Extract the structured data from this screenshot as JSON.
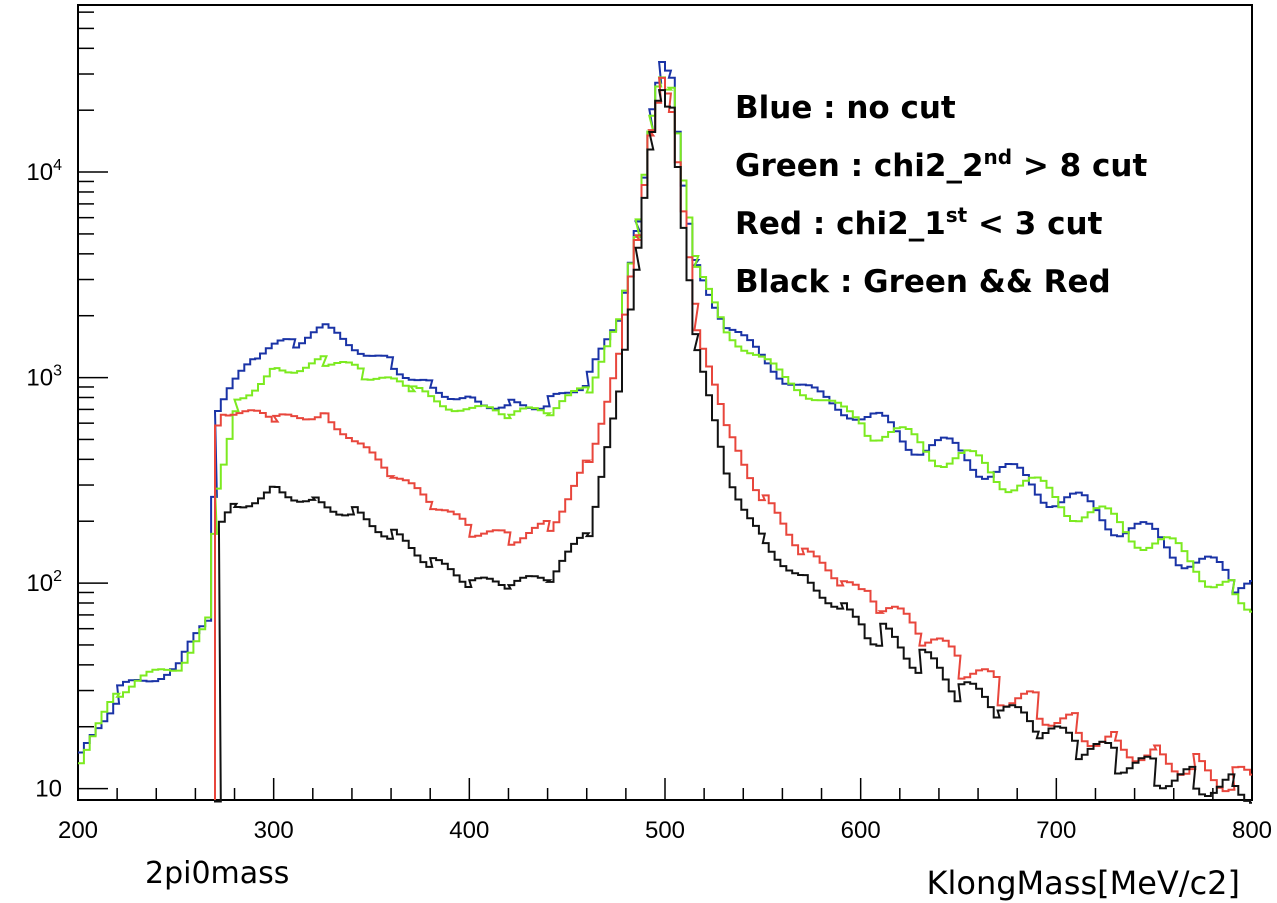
{
  "chart_data": {
    "type": "line",
    "style": "step-histogram",
    "y_scale": "log",
    "xlim": [
      200,
      800
    ],
    "ylim": [
      8.8,
      65000
    ],
    "x_ticks": [
      200,
      300,
      400,
      500,
      600,
      700,
      800
    ],
    "y_ticks": [
      {
        "value": 10,
        "base": "10",
        "exp": ""
      },
      {
        "value": 100,
        "base": "10",
        "exp": "2"
      },
      {
        "value": 1000,
        "base": "10",
        "exp": "3"
      },
      {
        "value": 10000,
        "base": "10",
        "exp": "4"
      }
    ],
    "xlabel": "KlongMass[MeV/c2]",
    "annotation": "2pi0mass",
    "grid": false,
    "legend_placement": "top-right",
    "legend": [
      {
        "color_name": "Blue",
        "pre": "Blue : no cut",
        "sup": "",
        "post": ""
      },
      {
        "color_name": "Green",
        "pre": "Green : chi2_2",
        "sup": "nd",
        "post": " > 8 cut"
      },
      {
        "color_name": "Red",
        "pre": "Red : chi2_1",
        "sup": "st",
        "post": " < 3 cut"
      },
      {
        "color_name": "Black",
        "pre": "Black : Green && Red",
        "sup": "",
        "post": ""
      }
    ],
    "series": [
      {
        "key": "blue",
        "color": "#1a33a6",
        "points": [
          [
            200,
            14
          ],
          [
            220,
            30
          ],
          [
            250,
            40
          ],
          [
            265,
            65
          ],
          [
            270,
            700
          ],
          [
            290,
            1300
          ],
          [
            310,
            1500
          ],
          [
            325,
            1700
          ],
          [
            340,
            1450
          ],
          [
            360,
            1150
          ],
          [
            380,
            900
          ],
          [
            400,
            780
          ],
          [
            420,
            740
          ],
          [
            440,
            760
          ],
          [
            460,
            1000
          ],
          [
            475,
            2000
          ],
          [
            485,
            6000
          ],
          [
            492,
            20000
          ],
          [
            497,
            35000
          ],
          [
            502,
            28000
          ],
          [
            508,
            9000
          ],
          [
            515,
            3500
          ],
          [
            530,
            1800
          ],
          [
            560,
            1000
          ],
          [
            590,
            700
          ],
          [
            620,
            520
          ],
          [
            650,
            420
          ],
          [
            680,
            320
          ],
          [
            710,
            240
          ],
          [
            740,
            180
          ],
          [
            770,
            130
          ],
          [
            790,
            100
          ],
          [
            800,
            90
          ]
        ]
      },
      {
        "key": "green",
        "color": "#7cea20",
        "points": [
          [
            200,
            14
          ],
          [
            220,
            30
          ],
          [
            250,
            40
          ],
          [
            265,
            65
          ],
          [
            270,
            300
          ],
          [
            280,
            800
          ],
          [
            300,
            1100
          ],
          [
            325,
            1200
          ],
          [
            345,
            1050
          ],
          [
            370,
            850
          ],
          [
            400,
            690
          ],
          [
            420,
            660
          ],
          [
            440,
            680
          ],
          [
            460,
            900
          ],
          [
            475,
            1800
          ],
          [
            485,
            5500
          ],
          [
            492,
            18000
          ],
          [
            497,
            30000
          ],
          [
            502,
            25000
          ],
          [
            508,
            8500
          ],
          [
            515,
            3300
          ],
          [
            530,
            1700
          ],
          [
            560,
            980
          ],
          [
            590,
            680
          ],
          [
            620,
            500
          ],
          [
            650,
            400
          ],
          [
            680,
            310
          ],
          [
            710,
            230
          ],
          [
            740,
            175
          ],
          [
            770,
            125
          ],
          [
            790,
            90
          ],
          [
            800,
            85
          ]
        ]
      },
      {
        "key": "red",
        "color": "#e8463c",
        "points": [
          [
            270,
            550
          ],
          [
            275,
            700
          ],
          [
            300,
            610
          ],
          [
            325,
            700
          ],
          [
            340,
            480
          ],
          [
            360,
            330
          ],
          [
            380,
            240
          ],
          [
            400,
            180
          ],
          [
            420,
            165
          ],
          [
            440,
            190
          ],
          [
            460,
            400
          ],
          [
            475,
            1300
          ],
          [
            485,
            5000
          ],
          [
            492,
            17000
          ],
          [
            497,
            27000
          ],
          [
            502,
            21000
          ],
          [
            508,
            6500
          ],
          [
            515,
            1800
          ],
          [
            530,
            550
          ],
          [
            550,
            250
          ],
          [
            570,
            140
          ],
          [
            590,
            100
          ],
          [
            610,
            75
          ],
          [
            630,
            55
          ],
          [
            650,
            40
          ],
          [
            670,
            30
          ],
          [
            690,
            25
          ],
          [
            710,
            20
          ],
          [
            730,
            17
          ],
          [
            750,
            15
          ],
          [
            770,
            13
          ],
          [
            790,
            11
          ],
          [
            800,
            12
          ]
        ]
      },
      {
        "key": "black",
        "color": "#111111",
        "points": [
          [
            270,
            9
          ],
          [
            272,
            200
          ],
          [
            280,
            240
          ],
          [
            300,
            290
          ],
          [
            320,
            250
          ],
          [
            340,
            220
          ],
          [
            360,
            170
          ],
          [
            380,
            125
          ],
          [
            400,
            100
          ],
          [
            420,
            98
          ],
          [
            440,
            105
          ],
          [
            460,
            180
          ],
          [
            475,
            800
          ],
          [
            485,
            4000
          ],
          [
            492,
            15000
          ],
          [
            497,
            26000
          ],
          [
            502,
            20000
          ],
          [
            508,
            5000
          ],
          [
            515,
            1300
          ],
          [
            530,
            350
          ],
          [
            550,
            155
          ],
          [
            570,
            105
          ],
          [
            590,
            75
          ],
          [
            610,
            55
          ],
          [
            630,
            42
          ],
          [
            650,
            30
          ],
          [
            670,
            24
          ],
          [
            690,
            19
          ],
          [
            710,
            16
          ],
          [
            730,
            14
          ],
          [
            750,
            12
          ],
          [
            770,
            11
          ],
          [
            790,
            10.5
          ],
          [
            800,
            10
          ]
        ]
      }
    ]
  }
}
